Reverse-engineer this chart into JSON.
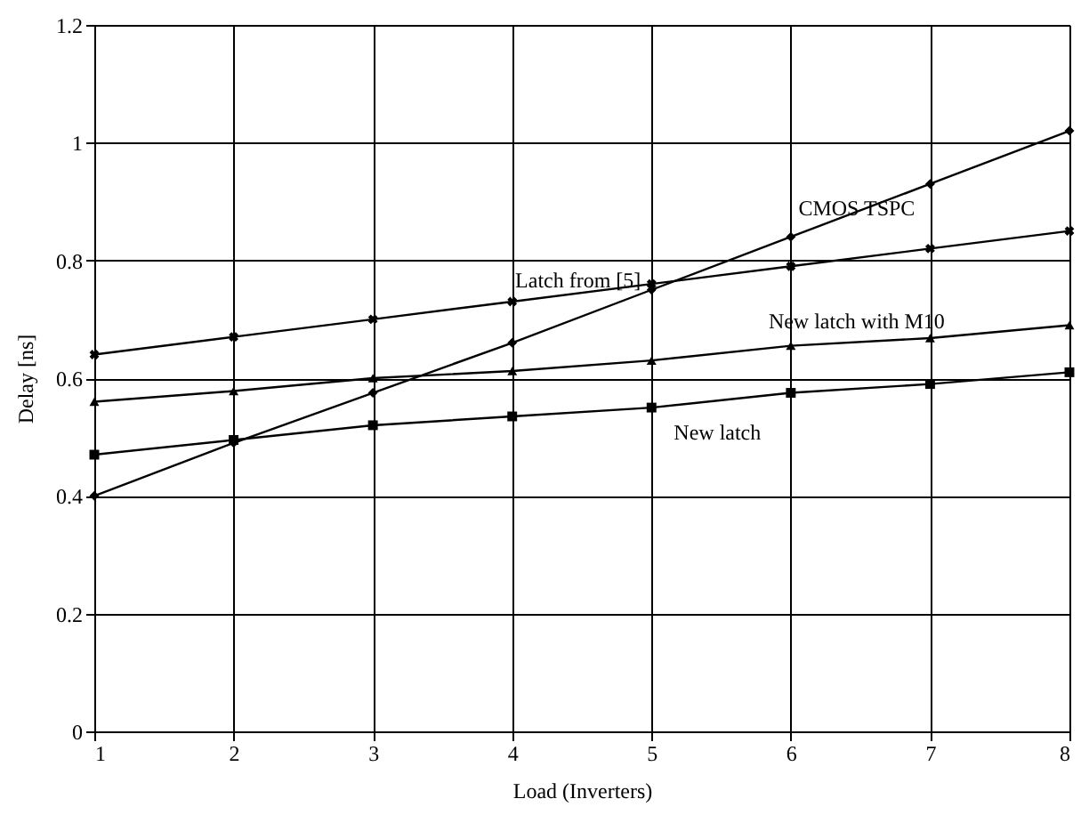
{
  "chart_data": {
    "type": "line",
    "xlabel": "Load (Inverters)",
    "ylabel": "Delay [ns]",
    "x": [
      1,
      2,
      3,
      4,
      5,
      6,
      7,
      8
    ],
    "series": [
      {
        "name": "CMOS TSPC",
        "color": "#000000",
        "marker": "diamond",
        "values": [
          0.4,
          0.49,
          0.575,
          0.66,
          0.75,
          0.84,
          0.93,
          1.02
        ]
      },
      {
        "name": "Latch from [5]",
        "color": "#000000",
        "marker": "cross",
        "values": [
          0.64,
          0.67,
          0.7,
          0.73,
          0.76,
          0.79,
          0.82,
          0.85
        ]
      },
      {
        "name": "New latch",
        "color": "#000000",
        "marker": "square",
        "values": [
          0.47,
          0.495,
          0.52,
          0.535,
          0.55,
          0.575,
          0.59,
          0.61
        ]
      },
      {
        "name": "New latch with M10",
        "color": "#000000",
        "marker": "triangle",
        "values": [
          0.56,
          0.578,
          0.6,
          0.612,
          0.63,
          0.655,
          0.668,
          0.69
        ]
      }
    ],
    "xlim": [
      1,
      8
    ],
    "xticks": [
      1,
      2,
      3,
      4,
      5,
      6,
      7,
      8
    ],
    "ylim": [
      0,
      1.2
    ],
    "yticks": [
      0,
      0.2,
      0.4,
      0.6,
      0.8,
      1,
      1.2
    ],
    "grid": true,
    "legend": false,
    "line_style": "solid"
  }
}
